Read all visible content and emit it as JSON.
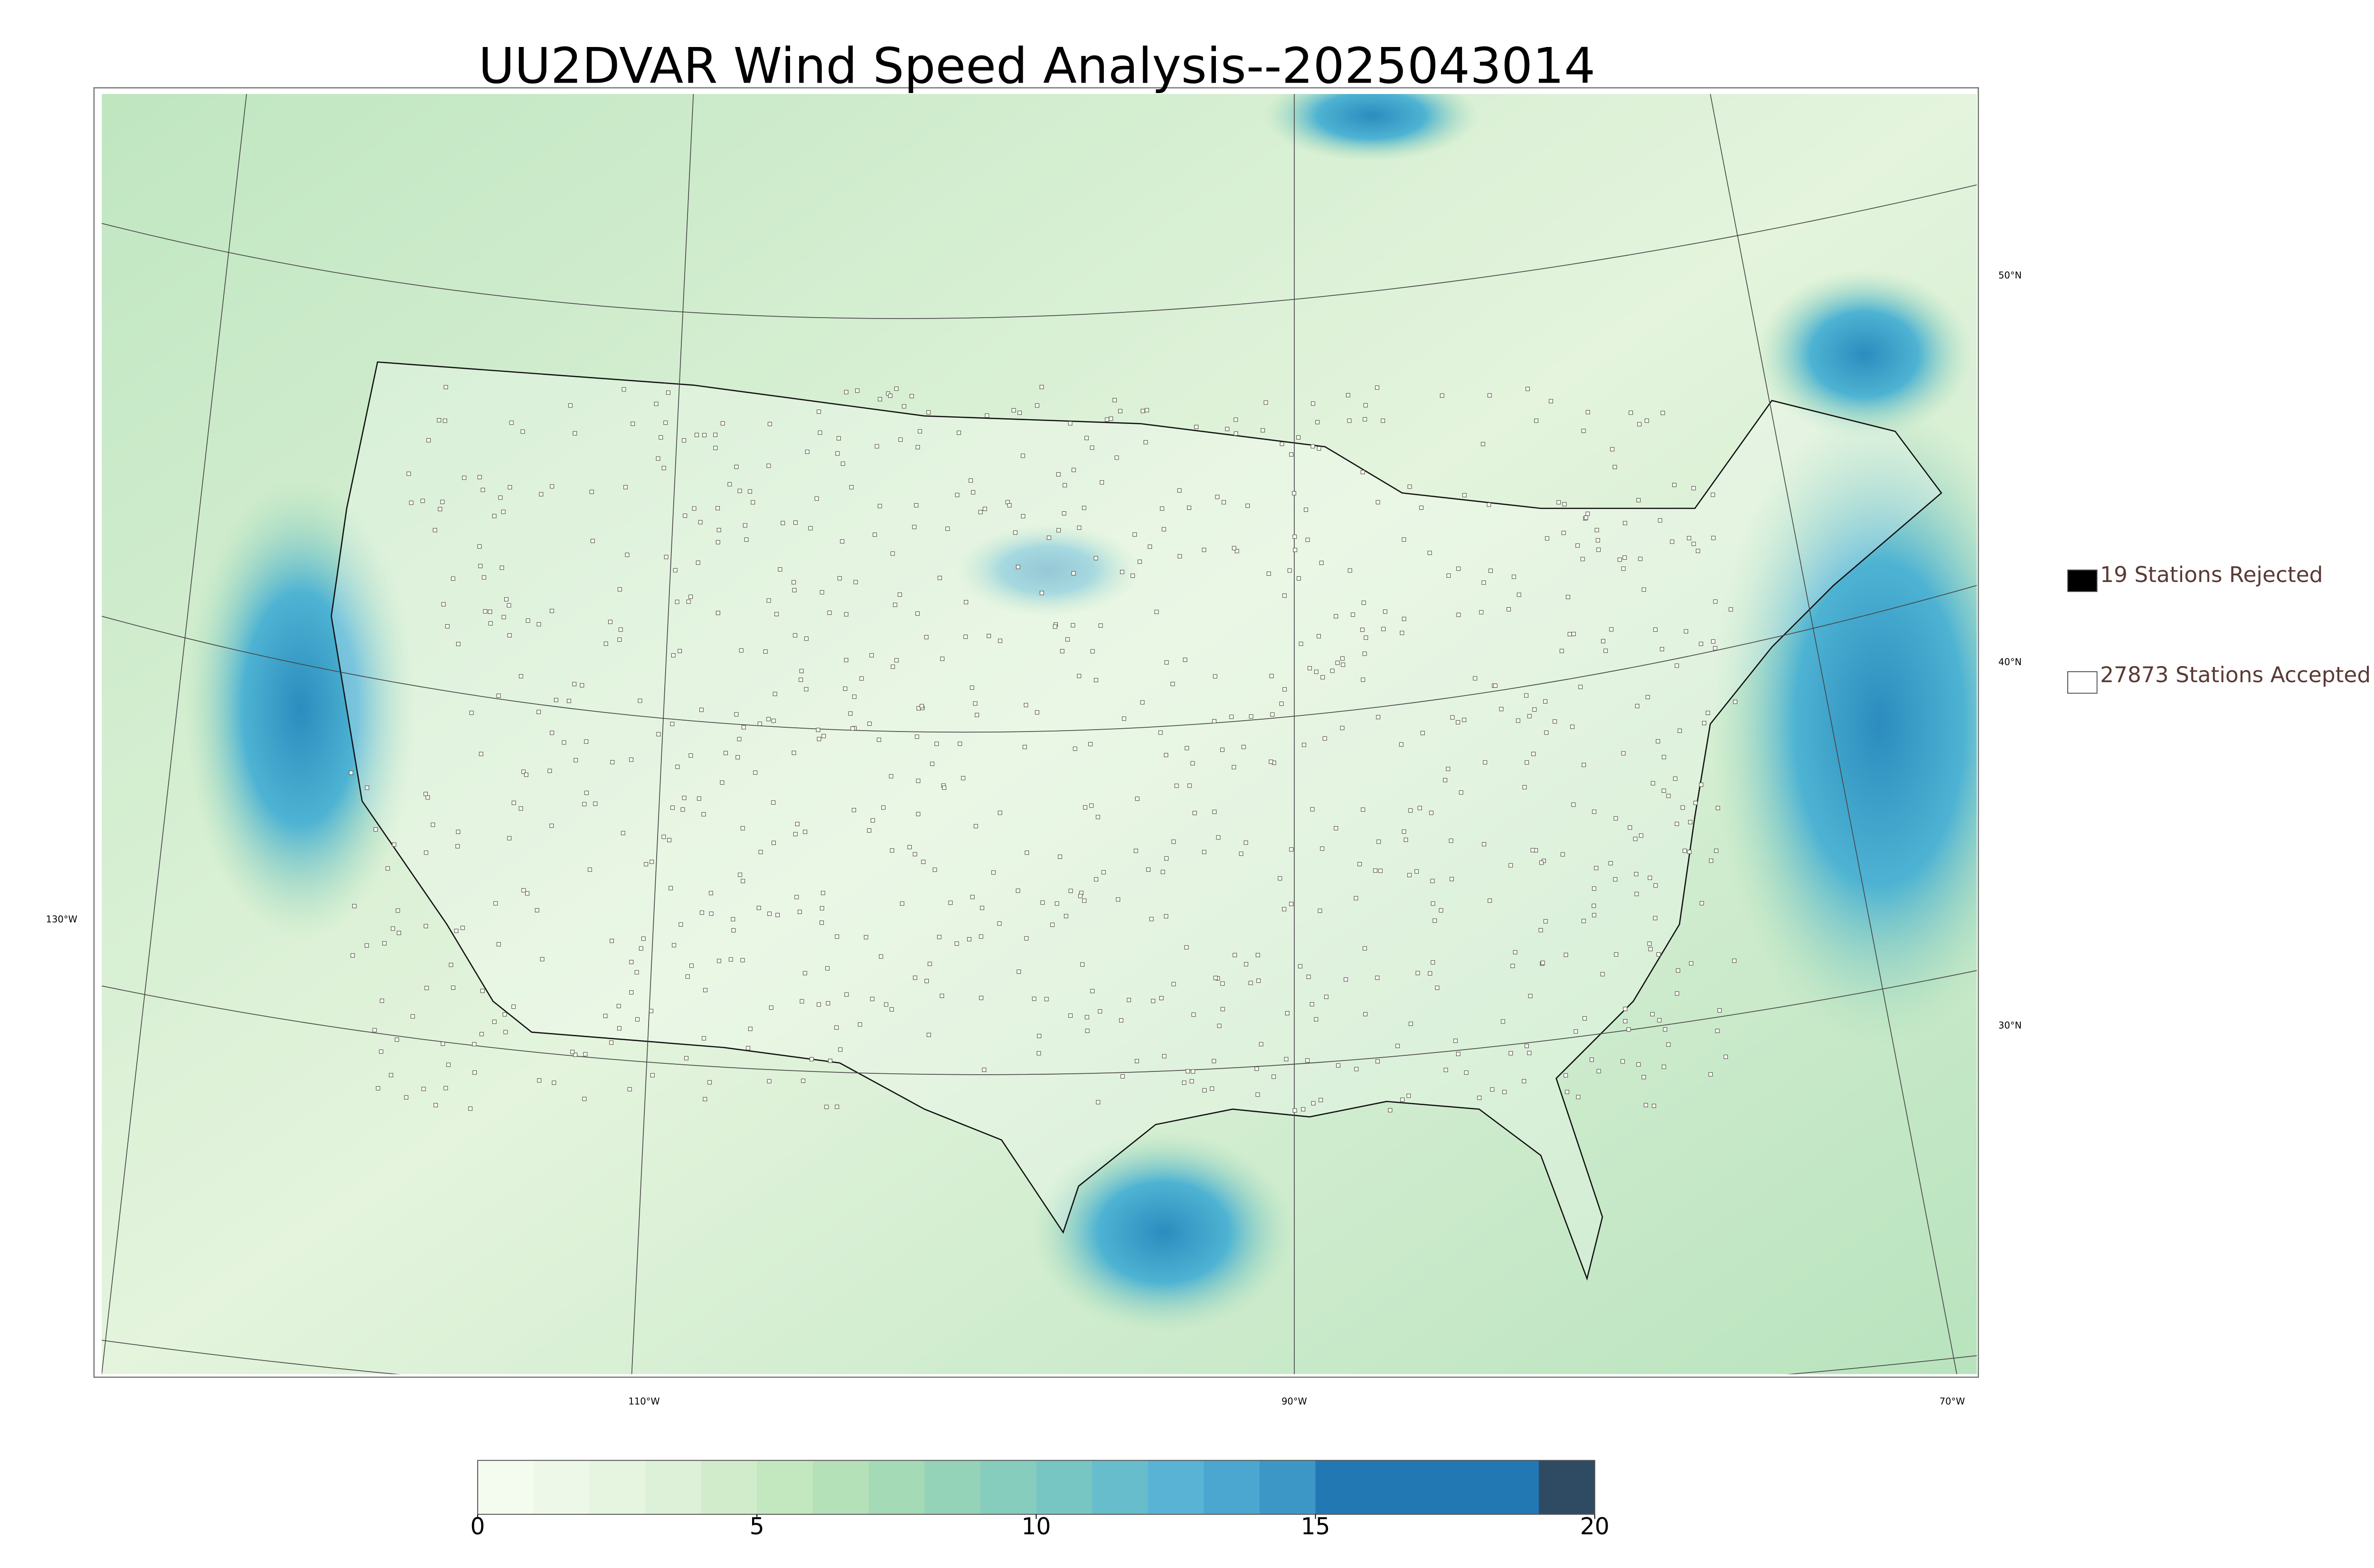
{
  "header": {
    "title": "UU2DVAR Wind Speed Analysis--2025043014"
  },
  "legend": {
    "items": [
      {
        "label": "19 Stations Rejected",
        "color": "#000000"
      },
      {
        "label": "27873 Stations Accepted",
        "color": "#ffffff"
      }
    ]
  },
  "graticule": {
    "lat_labels": [
      "50°N",
      "40°N",
      "30°N"
    ],
    "lon_labels": [
      "130°W",
      "110°W",
      "90°W",
      "70°W"
    ]
  },
  "colorbar": {
    "lim": [
      0,
      20
    ],
    "ticks": [
      0,
      5,
      10,
      15,
      20
    ],
    "colors": [
      "#f4fbef",
      "#eef8e8",
      "#e6f5e0",
      "#dcf1d7",
      "#d0ecca",
      "#c3e7bf",
      "#b4e1b8",
      "#a4dab6",
      "#94d3b8",
      "#86cdbd",
      "#77c6c4",
      "#67bdcb",
      "#58b3d4",
      "#4ba6d0",
      "#3d97c6",
      "#2178b3",
      "#2178b3",
      "#2178b3",
      "#2178b3",
      "#2f4b63"
    ]
  }
}
